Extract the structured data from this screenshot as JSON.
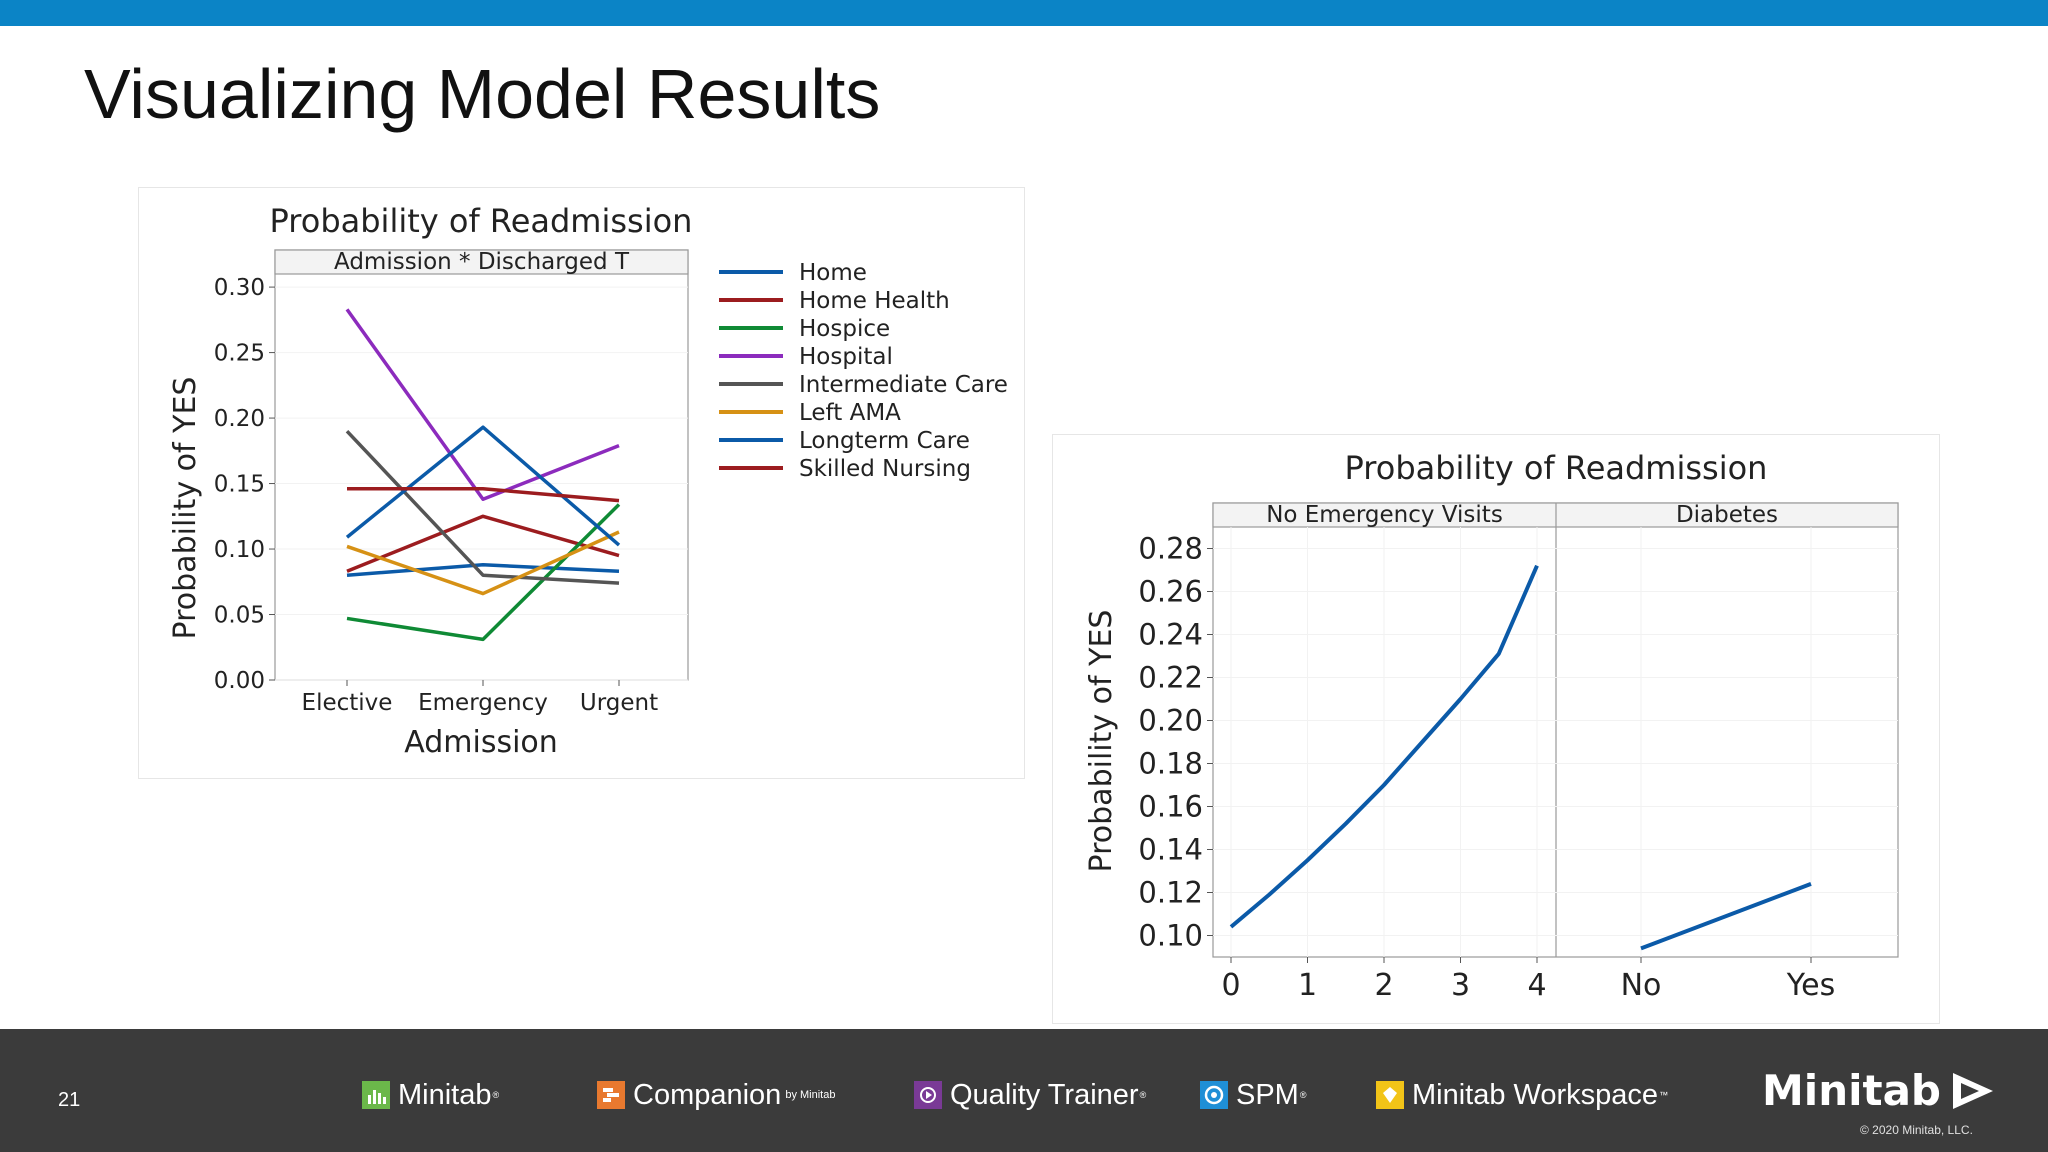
{
  "slide": {
    "title": "Visualizing Model Results",
    "page_number": "21",
    "copyright": "© 2020 Minitab, LLC.",
    "colors": {
      "topbar": "#0b84c6",
      "footer": "#3b3b3b"
    }
  },
  "footer": {
    "brands": [
      {
        "label": "Minitab",
        "icon": "minitab-bars-icon",
        "color": "#6bb84a"
      },
      {
        "label": "Companion",
        "sub": "by Minitab",
        "icon": "companion-icon",
        "color": "#e8792f"
      },
      {
        "label": "Quality Trainer",
        "icon": "quality-trainer-icon",
        "color": "#7a3a96"
      },
      {
        "label": "SPM",
        "icon": "spm-icon",
        "color": "#1f8fd6"
      },
      {
        "label": "Minitab Workspace",
        "icon": "workspace-icon",
        "color": "#f2c418"
      }
    ],
    "main_logo": "Minitab"
  },
  "chart_data": [
    {
      "type": "line",
      "title": "Probability of Readmission",
      "panel_label": "Admission * Discharged T",
      "xlabel": "Admission",
      "ylabel": "Probability of YES",
      "categories": [
        "Elective",
        "Emergency",
        "Urgent"
      ],
      "ylim": [
        0,
        0.31
      ],
      "yticks": [
        "0.00",
        "0.05",
        "0.10",
        "0.15",
        "0.20",
        "0.25",
        "0.30"
      ],
      "legend_position": "right",
      "series": [
        {
          "name": "Home",
          "color": "#0b5aa8",
          "values": [
            0.08,
            0.088,
            0.083
          ]
        },
        {
          "name": "Home Health",
          "color": "#9c1c1f",
          "values": [
            0.083,
            0.125,
            0.095
          ]
        },
        {
          "name": "Hospice",
          "color": "#0f8a35",
          "values": [
            0.047,
            0.031,
            0.134
          ]
        },
        {
          "name": "Hospital",
          "color": "#8c2bbd",
          "values": [
            0.283,
            0.138,
            0.179
          ]
        },
        {
          "name": "Intermediate Care",
          "color": "#555555",
          "values": [
            0.19,
            0.08,
            0.074
          ]
        },
        {
          "name": "Left AMA",
          "color": "#d69115",
          "values": [
            0.102,
            0.066,
            0.113
          ]
        },
        {
          "name": "Longterm Care",
          "color": "#0b5aa8",
          "values": [
            0.109,
            0.193,
            0.103
          ]
        },
        {
          "name": "Skilled Nursing",
          "color": "#9c1c1f",
          "values": [
            0.146,
            0.146,
            0.137
          ]
        }
      ]
    },
    {
      "type": "line",
      "title": "Probability of Readmission",
      "ylabel": "Probability of YES",
      "ylim": [
        0.09,
        0.29
      ],
      "yticks": [
        "0.10",
        "0.12",
        "0.14",
        "0.16",
        "0.18",
        "0.20",
        "0.22",
        "0.24",
        "0.26",
        "0.28"
      ],
      "line_color": "#0b5aa8",
      "panels": [
        {
          "label": "No Emergency Visits",
          "xticks": [
            "0",
            "1",
            "2",
            "3",
            "4"
          ],
          "x": [
            0,
            0.5,
            1,
            1.5,
            2,
            2.5,
            3,
            3.5,
            4
          ],
          "y": [
            0.104,
            0.119,
            0.135,
            0.152,
            0.17,
            0.19,
            0.21,
            0.231,
            0.272
          ]
        },
        {
          "label": "Diabetes",
          "xticks": [
            "No",
            "Yes"
          ],
          "categories": [
            "No",
            "Yes"
          ],
          "values": [
            0.094,
            0.124
          ]
        }
      ]
    }
  ]
}
